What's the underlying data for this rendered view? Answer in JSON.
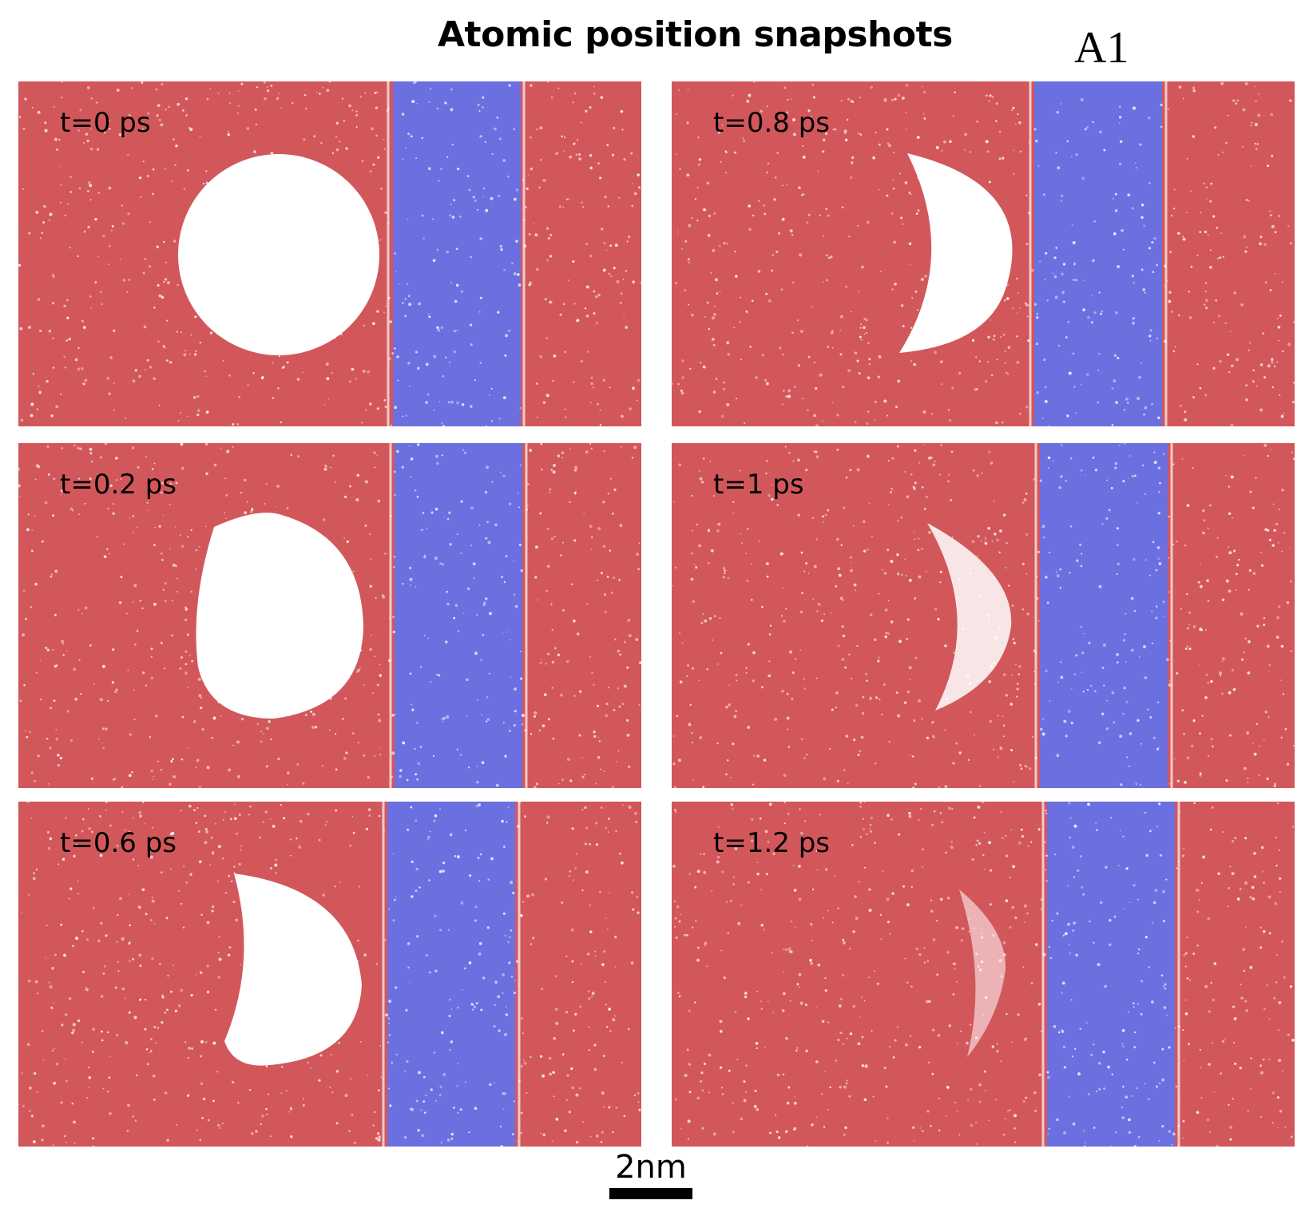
{
  "figure": {
    "title": "Atomic position snapshots",
    "tag": "A1",
    "scale_label": "2nm"
  },
  "panels": [
    {
      "label": "t=0 ps"
    },
    {
      "label": "t=0.8 ps"
    },
    {
      "label": "t=0.2 ps"
    },
    {
      "label": "t=1 ps"
    },
    {
      "label": "t=0.6 ps"
    },
    {
      "label": "t=1.2 ps"
    }
  ],
  "colors": {
    "liquid": "#d2575b",
    "solid": "#6b6fe0",
    "void": "#ffffff"
  }
}
